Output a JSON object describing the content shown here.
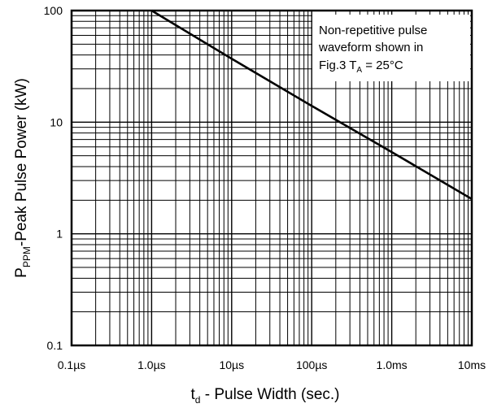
{
  "chart_data": {
    "type": "line",
    "x_scale": "log",
    "y_scale": "log",
    "xlim_seconds": [
      1e-07,
      0.01
    ],
    "ylim_kW": [
      0.1,
      100
    ],
    "x_tick_values_seconds": [
      1e-07,
      1e-06,
      1e-05,
      0.0001,
      0.001,
      0.01
    ],
    "x_tick_labels": [
      "0.1µs",
      "1.0µs",
      "10µs",
      "100µs",
      "1.0ms",
      "10ms"
    ],
    "y_tick_values": [
      0.1,
      1,
      10,
      100
    ],
    "y_tick_labels": [
      "0.1",
      "1",
      "10",
      "100"
    ],
    "ylabel_parts": [
      "P",
      "PPM",
      "-Peak Pulse Power (kW)"
    ],
    "xlabel_parts": [
      "t",
      "d",
      " - Pulse Width (sec.)"
    ],
    "grid": true,
    "series": [
      {
        "x_seconds": [
          1e-06,
          1e-05,
          0.0001,
          0.001,
          0.01
        ],
        "y_kW": [
          100,
          37,
          14,
          5.4,
          2.05
        ]
      }
    ],
    "annotation": {
      "line1": "Non-repetitive pulse",
      "line2": "waveform shown in",
      "line3_prefix": "Fig.3 T",
      "line3_sub": "A",
      "line3_suffix": " = 25°C"
    },
    "colors": {
      "line": "#000000",
      "grid": "#000000",
      "background": "#ffffff"
    }
  }
}
